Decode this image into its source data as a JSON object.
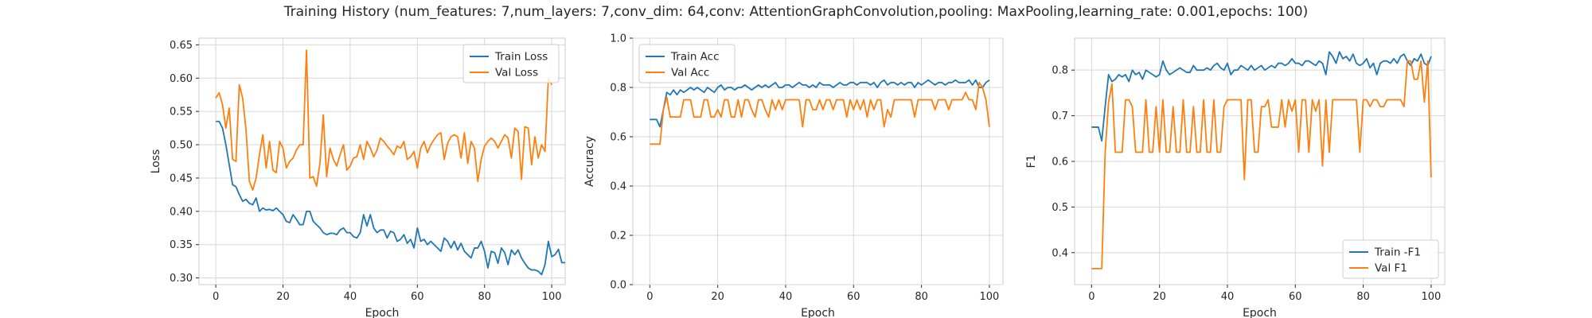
{
  "figure": {
    "title": "Training History (num_features: 7,num_layers: 7,conv_dim: 64,conv: AttentionGraphConvolution,pooling: MaxPooling,learning_rate: 0.001,epochs: 100)"
  },
  "colors": {
    "train": "#1f77b4",
    "val": "#ff7f0e"
  },
  "chart_data": [
    {
      "type": "line",
      "xlabel": "Epoch",
      "ylabel": "Loss",
      "xlim": [
        -5,
        104
      ],
      "ylim": [
        0.29,
        0.66
      ],
      "xticks": [
        0,
        20,
        40,
        60,
        80,
        100
      ],
      "yticks": [
        0.3,
        0.35,
        0.4,
        0.45,
        0.5,
        0.55,
        0.6,
        0.65
      ],
      "ytick_decimals": 2,
      "grid": true,
      "legend": "top-right",
      "series": [
        {
          "name": "Train Loss",
          "color": "#1f77b4",
          "values": [
            0.535,
            0.535,
            0.525,
            0.5,
            0.47,
            0.44,
            0.437,
            0.425,
            0.415,
            0.418,
            0.412,
            0.41,
            0.42,
            0.4,
            0.405,
            0.402,
            0.403,
            0.401,
            0.405,
            0.4,
            0.395,
            0.385,
            0.383,
            0.395,
            0.388,
            0.38,
            0.38,
            0.4,
            0.4,
            0.385,
            0.38,
            0.375,
            0.368,
            0.365,
            0.367,
            0.367,
            0.365,
            0.372,
            0.375,
            0.368,
            0.368,
            0.362,
            0.36,
            0.368,
            0.395,
            0.378,
            0.395,
            0.375,
            0.368,
            0.372,
            0.372,
            0.36,
            0.37,
            0.368,
            0.355,
            0.358,
            0.365,
            0.352,
            0.358,
            0.345,
            0.375,
            0.355,
            0.358,
            0.35,
            0.355,
            0.35,
            0.345,
            0.34,
            0.36,
            0.355,
            0.345,
            0.355,
            0.342,
            0.352,
            0.34,
            0.335,
            0.33,
            0.345,
            0.345,
            0.355,
            0.34,
            0.315,
            0.34,
            0.338,
            0.322,
            0.345,
            0.338,
            0.32,
            0.342,
            0.335,
            0.342,
            0.33,
            0.322,
            0.315,
            0.312,
            0.312,
            0.31,
            0.305,
            0.32,
            0.355,
            0.332,
            0.335,
            0.343,
            0.323,
            0.323
          ]
        },
        {
          "name": "Val Loss",
          "color": "#ff7f0e",
          "values": [
            0.57,
            0.578,
            0.56,
            0.525,
            0.555,
            0.478,
            0.475,
            0.59,
            0.57,
            0.522,
            0.445,
            0.432,
            0.45,
            0.485,
            0.515,
            0.465,
            0.505,
            0.462,
            0.458,
            0.505,
            0.495,
            0.465,
            0.475,
            0.48,
            0.492,
            0.5,
            0.5,
            0.642,
            0.45,
            0.452,
            0.438,
            0.472,
            0.545,
            0.452,
            0.495,
            0.478,
            0.468,
            0.485,
            0.5,
            0.462,
            0.468,
            0.48,
            0.482,
            0.5,
            0.478,
            0.505,
            0.495,
            0.482,
            0.492,
            0.51,
            0.505,
            0.498,
            0.492,
            0.485,
            0.498,
            0.495,
            0.505,
            0.478,
            0.482,
            0.49,
            0.465,
            0.495,
            0.505,
            0.488,
            0.5,
            0.508,
            0.515,
            0.518,
            0.478,
            0.502,
            0.512,
            0.515,
            0.512,
            0.48,
            0.518,
            0.472,
            0.505,
            0.495,
            0.445,
            0.478,
            0.498,
            0.505,
            0.51,
            0.505,
            0.495,
            0.505,
            0.515,
            0.51,
            0.48,
            0.525,
            0.52,
            0.448,
            0.527,
            0.525,
            0.47,
            0.512,
            0.48,
            0.5,
            0.49,
            0.6,
            0.59
          ]
        }
      ]
    },
    {
      "type": "line",
      "xlabel": "Epoch",
      "ylabel": "Accuracy",
      "xlim": [
        -5,
        104
      ],
      "ylim": [
        0.0,
        1.0
      ],
      "xticks": [
        0,
        20,
        40,
        60,
        80,
        100
      ],
      "yticks": [
        0.0,
        0.2,
        0.4,
        0.6,
        0.8,
        1.0
      ],
      "ytick_decimals": 1,
      "grid": true,
      "legend": "top-left",
      "series": [
        {
          "name": "Train Acc",
          "color": "#1f77b4",
          "values": [
            0.67,
            0.67,
            0.67,
            0.64,
            0.71,
            0.78,
            0.77,
            0.79,
            0.77,
            0.79,
            0.78,
            0.79,
            0.8,
            0.79,
            0.8,
            0.79,
            0.78,
            0.8,
            0.79,
            0.78,
            0.8,
            0.81,
            0.79,
            0.8,
            0.8,
            0.79,
            0.8,
            0.8,
            0.81,
            0.8,
            0.79,
            0.8,
            0.81,
            0.8,
            0.81,
            0.8,
            0.81,
            0.82,
            0.8,
            0.8,
            0.81,
            0.81,
            0.8,
            0.81,
            0.82,
            0.81,
            0.81,
            0.8,
            0.81,
            0.8,
            0.82,
            0.81,
            0.81,
            0.81,
            0.8,
            0.81,
            0.82,
            0.81,
            0.81,
            0.82,
            0.82,
            0.81,
            0.82,
            0.82,
            0.82,
            0.81,
            0.82,
            0.8,
            0.82,
            0.83,
            0.81,
            0.82,
            0.82,
            0.81,
            0.82,
            0.81,
            0.82,
            0.82,
            0.8,
            0.82,
            0.81,
            0.82,
            0.83,
            0.82,
            0.81,
            0.82,
            0.82,
            0.81,
            0.82,
            0.82,
            0.83,
            0.82,
            0.82,
            0.82,
            0.83,
            0.81,
            0.83,
            0.8,
            0.8,
            0.82,
            0.83
          ]
        },
        {
          "name": "Val Acc",
          "color": "#ff7f0e",
          "values": [
            0.57,
            0.57,
            0.57,
            0.57,
            0.71,
            0.76,
            0.68,
            0.68,
            0.68,
            0.68,
            0.75,
            0.75,
            0.75,
            0.68,
            0.68,
            0.68,
            0.75,
            0.75,
            0.68,
            0.68,
            0.71,
            0.68,
            0.75,
            0.75,
            0.68,
            0.68,
            0.75,
            0.68,
            0.75,
            0.75,
            0.71,
            0.68,
            0.75,
            0.75,
            0.71,
            0.68,
            0.75,
            0.71,
            0.75,
            0.71,
            0.75,
            0.75,
            0.75,
            0.75,
            0.75,
            0.64,
            0.75,
            0.75,
            0.71,
            0.71,
            0.75,
            0.71,
            0.75,
            0.75,
            0.71,
            0.75,
            0.75,
            0.75,
            0.68,
            0.75,
            0.71,
            0.75,
            0.71,
            0.75,
            0.68,
            0.75,
            0.71,
            0.75,
            0.75,
            0.64,
            0.71,
            0.68,
            0.75,
            0.75,
            0.75,
            0.75,
            0.75,
            0.75,
            0.68,
            0.75,
            0.75,
            0.75,
            0.75,
            0.75,
            0.71,
            0.75,
            0.75,
            0.75,
            0.71,
            0.75,
            0.75,
            0.75,
            0.75,
            0.78,
            0.75,
            0.75,
            0.71,
            0.82,
            0.8,
            0.75,
            0.64
          ]
        }
      ]
    },
    {
      "type": "line",
      "xlabel": "Epoch",
      "ylabel": "F1",
      "xlim": [
        -5,
        104
      ],
      "ylim": [
        0.33,
        0.87
      ],
      "xticks": [
        0,
        20,
        40,
        60,
        80,
        100
      ],
      "yticks": [
        0.4,
        0.5,
        0.6,
        0.7,
        0.8
      ],
      "ytick_decimals": 1,
      "grid": true,
      "legend": "bottom-right",
      "series": [
        {
          "name": "Train -F1",
          "color": "#1f77b4",
          "values": [
            0.675,
            0.675,
            0.675,
            0.645,
            0.72,
            0.79,
            0.775,
            0.78,
            0.79,
            0.785,
            0.79,
            0.775,
            0.8,
            0.79,
            0.795,
            0.78,
            0.8,
            0.795,
            0.79,
            0.785,
            0.79,
            0.82,
            0.8,
            0.79,
            0.795,
            0.8,
            0.805,
            0.8,
            0.795,
            0.795,
            0.81,
            0.8,
            0.8,
            0.8,
            0.805,
            0.8,
            0.81,
            0.815,
            0.805,
            0.8,
            0.815,
            0.79,
            0.8,
            0.8,
            0.81,
            0.805,
            0.8,
            0.81,
            0.8,
            0.805,
            0.81,
            0.8,
            0.805,
            0.81,
            0.805,
            0.815,
            0.815,
            0.81,
            0.815,
            0.825,
            0.815,
            0.815,
            0.81,
            0.82,
            0.82,
            0.815,
            0.81,
            0.82,
            0.815,
            0.79,
            0.84,
            0.83,
            0.815,
            0.84,
            0.825,
            0.83,
            0.82,
            0.835,
            0.815,
            0.81,
            0.815,
            0.825,
            0.805,
            0.815,
            0.79,
            0.815,
            0.82,
            0.82,
            0.815,
            0.825,
            0.815,
            0.83,
            0.835,
            0.82,
            0.81,
            0.825,
            0.82,
            0.835,
            0.815,
            0.81,
            0.83
          ]
        },
        {
          "name": "Val F1",
          "color": "#ff7f0e",
          "values": [
            0.365,
            0.365,
            0.365,
            0.365,
            0.62,
            0.73,
            0.77,
            0.62,
            0.62,
            0.62,
            0.735,
            0.735,
            0.72,
            0.62,
            0.62,
            0.62,
            0.735,
            0.62,
            0.62,
            0.72,
            0.62,
            0.735,
            0.62,
            0.62,
            0.72,
            0.62,
            0.62,
            0.735,
            0.62,
            0.62,
            0.72,
            0.62,
            0.62,
            0.735,
            0.62,
            0.62,
            0.735,
            0.62,
            0.62,
            0.72,
            0.735,
            0.735,
            0.735,
            0.735,
            0.735,
            0.56,
            0.735,
            0.735,
            0.62,
            0.62,
            0.72,
            0.72,
            0.735,
            0.675,
            0.675,
            0.675,
            0.735,
            0.675,
            0.735,
            0.71,
            0.735,
            0.62,
            0.735,
            0.735,
            0.62,
            0.735,
            0.71,
            0.735,
            0.59,
            0.735,
            0.62,
            0.735,
            0.735,
            0.735,
            0.735,
            0.735,
            0.735,
            0.735,
            0.735,
            0.62,
            0.735,
            0.735,
            0.72,
            0.735,
            0.735,
            0.72,
            0.72,
            0.735,
            0.735,
            0.735,
            0.735,
            0.735,
            0.72,
            0.82,
            0.82,
            0.78,
            0.78,
            0.82,
            0.73,
            0.82,
            0.565
          ]
        }
      ]
    }
  ]
}
